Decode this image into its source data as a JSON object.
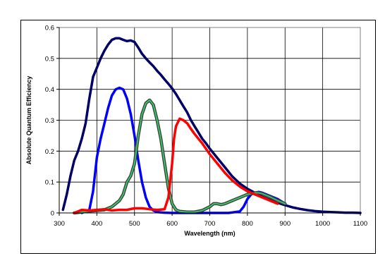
{
  "chart_data": {
    "type": "line",
    "title": "",
    "xlabel": "Wavelength (nm)",
    "ylabel": "Absolute Quantum Efficiency",
    "xlim": [
      300,
      1100
    ],
    "ylim": [
      0,
      0.6
    ],
    "x_ticks": [
      "300",
      "400",
      "500",
      "600",
      "700",
      "800",
      "900",
      "1000",
      "1100"
    ],
    "y_ticks": [
      "0",
      "0.1",
      "0.2",
      "0.3",
      "0.4",
      "0.5",
      "0.6"
    ],
    "grid": true,
    "legend": "none",
    "series": [
      {
        "color": "#000066",
        "x": [
          310,
          320,
          330,
          340,
          350,
          360,
          370,
          380,
          390,
          400,
          410,
          420,
          430,
          440,
          450,
          460,
          470,
          480,
          490,
          500,
          510,
          520,
          530,
          540,
          550,
          560,
          570,
          580,
          590,
          600,
          610,
          620,
          630,
          640,
          650,
          660,
          670,
          680,
          690,
          700,
          720,
          740,
          760,
          780,
          800,
          820,
          840,
          860,
          880,
          900,
          920,
          940,
          960,
          980,
          1000,
          1020,
          1040,
          1060,
          1080,
          1100
        ],
        "y": [
          0.01,
          0.06,
          0.12,
          0.17,
          0.2,
          0.24,
          0.29,
          0.37,
          0.44,
          0.47,
          0.5,
          0.525,
          0.545,
          0.56,
          0.565,
          0.565,
          0.56,
          0.556,
          0.558,
          0.553,
          0.535,
          0.515,
          0.5,
          0.487,
          0.475,
          0.46,
          0.447,
          0.432,
          0.418,
          0.403,
          0.385,
          0.365,
          0.345,
          0.325,
          0.3,
          0.28,
          0.26,
          0.24,
          0.225,
          0.208,
          0.178,
          0.148,
          0.118,
          0.095,
          0.078,
          0.065,
          0.052,
          0.042,
          0.033,
          0.025,
          0.018,
          0.013,
          0.009,
          0.006,
          0.004,
          0.003,
          0.002,
          0.001,
          0.001,
          0.0
        ]
      },
      {
        "color": "#0000ff",
        "x": [
          360,
          370,
          380,
          390,
          400,
          410,
          420,
          430,
          440,
          450,
          460,
          470,
          480,
          490,
          500,
          510,
          520,
          530,
          540,
          550,
          560,
          580,
          600,
          650,
          700,
          750,
          780,
          790,
          800,
          810,
          820,
          830,
          840,
          860,
          880,
          900
        ],
        "y": [
          0.0,
          0.005,
          0.01,
          0.07,
          0.18,
          0.24,
          0.29,
          0.34,
          0.38,
          0.4,
          0.405,
          0.4,
          0.37,
          0.32,
          0.25,
          0.17,
          0.1,
          0.05,
          0.02,
          0.008,
          0.003,
          0.001,
          0.0,
          0.0,
          0.0,
          0.0,
          0.005,
          0.02,
          0.045,
          0.06,
          0.065,
          0.068,
          0.065,
          0.055,
          0.045,
          0.03
        ]
      },
      {
        "color": "#3a8c3a",
        "x": [
          340,
          360,
          380,
          400,
          420,
          440,
          460,
          470,
          480,
          490,
          500,
          510,
          520,
          530,
          540,
          550,
          560,
          570,
          580,
          590,
          600,
          610,
          620,
          640,
          660,
          680,
          700,
          710,
          720,
          730,
          740,
          760,
          780,
          800,
          820,
          830,
          840,
          860,
          880,
          900
        ],
        "y": [
          0.0,
          0.003,
          0.006,
          0.008,
          0.01,
          0.02,
          0.04,
          0.06,
          0.1,
          0.12,
          0.16,
          0.25,
          0.32,
          0.355,
          0.365,
          0.35,
          0.3,
          0.24,
          0.16,
          0.08,
          0.03,
          0.01,
          0.005,
          0.003,
          0.003,
          0.008,
          0.02,
          0.03,
          0.03,
          0.027,
          0.03,
          0.04,
          0.05,
          0.06,
          0.065,
          0.065,
          0.062,
          0.052,
          0.04,
          0.03
        ]
      },
      {
        "color": "#ff0000",
        "x": [
          340,
          360,
          380,
          400,
          420,
          440,
          460,
          480,
          500,
          520,
          540,
          560,
          580,
          590,
          600,
          605,
          610,
          620,
          630,
          640,
          650,
          660,
          680,
          700,
          720,
          740,
          760,
          780,
          800,
          820,
          840,
          860,
          880
        ],
        "y": [
          0.0,
          0.01,
          0.008,
          0.01,
          0.012,
          0.008,
          0.01,
          0.01,
          0.015,
          0.015,
          0.012,
          0.01,
          0.012,
          0.05,
          0.16,
          0.24,
          0.28,
          0.305,
          0.3,
          0.29,
          0.272,
          0.255,
          0.225,
          0.19,
          0.16,
          0.13,
          0.105,
          0.085,
          0.07,
          0.06,
          0.05,
          0.04,
          0.03
        ]
      }
    ]
  }
}
